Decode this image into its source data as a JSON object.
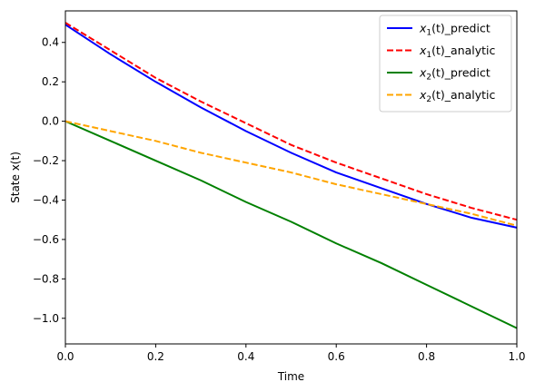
{
  "chart_data": {
    "type": "line",
    "title": "",
    "xlabel": "Time",
    "ylabel": "State x(t)",
    "xlim": [
      0.0,
      1.0
    ],
    "ylim": [
      -1.13,
      0.56
    ],
    "grid": false,
    "legend_position": "upper-right",
    "x_ticks": [
      0.0,
      0.2,
      0.4,
      0.6,
      0.8,
      1.0
    ],
    "x_tick_labels": [
      "0.0",
      "0.2",
      "0.4",
      "0.6",
      "0.8",
      "1.0"
    ],
    "y_ticks": [
      0.4,
      0.2,
      0.0,
      -0.2,
      -0.4,
      -0.6,
      -0.8,
      -1.0
    ],
    "y_tick_labels": [
      "0.4",
      "0.2",
      "0.0",
      "−0.2",
      "−0.4",
      "−0.6",
      "−0.8",
      "−1.0"
    ],
    "x": [
      0.0,
      0.1,
      0.2,
      0.3,
      0.4,
      0.5,
      0.6,
      0.7,
      0.8,
      0.9,
      1.0
    ],
    "series": [
      {
        "name_main": "x",
        "name_sub": "1",
        "name_suffix": "(t)_predict",
        "color": "#0000ff",
        "dash": "solid",
        "values": [
          0.49,
          0.34,
          0.2,
          0.07,
          -0.05,
          -0.16,
          -0.26,
          -0.34,
          -0.42,
          -0.49,
          -0.54
        ]
      },
      {
        "name_main": "x",
        "name_sub": "1",
        "name_suffix": "(t)_analytic",
        "color": "#ff0000",
        "dash": "dashed",
        "values": [
          0.5,
          0.36,
          0.22,
          0.1,
          -0.01,
          -0.12,
          -0.21,
          -0.29,
          -0.37,
          -0.44,
          -0.5
        ]
      },
      {
        "name_main": "x",
        "name_sub": "2",
        "name_suffix": "(t)_predict",
        "color": "#008000",
        "dash": "solid",
        "values": [
          0.0,
          -0.1,
          -0.2,
          -0.3,
          -0.41,
          -0.51,
          -0.62,
          -0.72,
          -0.83,
          -0.94,
          -1.05
        ]
      },
      {
        "name_main": "x",
        "name_sub": "2",
        "name_suffix": "(t)_analytic",
        "color": "#ffa500",
        "dash": "dashed",
        "values": [
          0.0,
          -0.05,
          -0.1,
          -0.16,
          -0.21,
          -0.26,
          -0.32,
          -0.37,
          -0.42,
          -0.47,
          -0.53
        ]
      }
    ]
  }
}
